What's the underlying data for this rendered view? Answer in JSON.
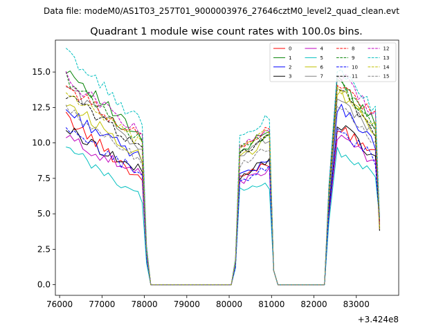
{
  "suptitle": "Data file: modeM0/AS1T03_257T01_9000003976_27646cztM0_level2_quad_clean.evt",
  "chart_data": {
    "type": "line",
    "title": "Quadrant 1 module wise count rates with 100.0s bins.",
    "xlabel": "",
    "ylabel": "",
    "x_offset_label": "+3.424e8",
    "xlim": [
      75900,
      84000
    ],
    "ylim": [
      -0.75,
      17.25
    ],
    "grid": false,
    "legend_position": "top-right",
    "x_ticks": [
      76000,
      77000,
      78000,
      79000,
      80000,
      81000,
      82000,
      83000
    ],
    "x_tick_labels": [
      "76000",
      "77000",
      "78000",
      "79000",
      "80000",
      "81000",
      "82000",
      "83000"
    ],
    "y_ticks": [
      0,
      2.5,
      5,
      7.5,
      10,
      12.5,
      15
    ],
    "y_tick_labels": [
      "0.0",
      "2.5",
      "5.0",
      "7.5",
      "10.0",
      "12.5",
      "15.0"
    ],
    "series": [
      {
        "name": "0",
        "color": "#ff0000",
        "dashed": false,
        "seg1_start": 11.8,
        "seg1_end": 7.4,
        "seg2_start": 7.5,
        "seg2_end": 8.5,
        "seg3_start": 11.2,
        "seg3_end": 9.2
      },
      {
        "name": "1",
        "color": "#008000",
        "dashed": false,
        "seg1_start": 15.3,
        "seg1_end": 10.2,
        "seg2_start": 9.5,
        "seg2_end": 10.8,
        "seg3_start": 14.4,
        "seg3_end": 11.4
      },
      {
        "name": "2",
        "color": "#0000ff",
        "dashed": false,
        "seg1_start": 12.3,
        "seg1_end": 8.8,
        "seg2_start": 7.9,
        "seg2_end": 8.8,
        "seg3_start": 12.6,
        "seg3_end": 10.0
      },
      {
        "name": "3",
        "color": "#000000",
        "dashed": false,
        "seg1_start": 11.0,
        "seg1_end": 7.9,
        "seg2_start": 7.6,
        "seg2_end": 8.9,
        "seg3_start": 11.5,
        "seg3_end": 9.0
      },
      {
        "name": "4",
        "color": "#bf00bf",
        "dashed": false,
        "seg1_start": 10.4,
        "seg1_end": 7.6,
        "seg2_start": 7.3,
        "seg2_end": 8.1,
        "seg3_start": 10.6,
        "seg3_end": 8.5
      },
      {
        "name": "5",
        "color": "#00bfbf",
        "dashed": false,
        "seg1_start": 9.6,
        "seg1_end": 6.1,
        "seg2_start": 6.5,
        "seg2_end": 6.9,
        "seg3_start": 9.6,
        "seg3_end": 7.5
      },
      {
        "name": "6",
        "color": "#bfbf00",
        "dashed": false,
        "seg1_start": 12.9,
        "seg1_end": 9.0,
        "seg2_start": 8.8,
        "seg2_end": 10.3,
        "seg3_start": 13.6,
        "seg3_end": 10.9
      },
      {
        "name": "7",
        "color": "#808080",
        "dashed": false,
        "seg1_start": 14.1,
        "seg1_end": 9.6,
        "seg2_start": 9.1,
        "seg2_end": 10.4,
        "seg3_start": 13.2,
        "seg3_end": 10.6
      },
      {
        "name": "8",
        "color": "#ff0000",
        "dashed": true,
        "seg1_start": 14.0,
        "seg1_end": 10.3,
        "seg2_start": 9.7,
        "seg2_end": 11.0,
        "seg3_start": 14.2,
        "seg3_end": 11.8
      },
      {
        "name": "9",
        "color": "#008000",
        "dashed": true,
        "seg1_start": 14.6,
        "seg1_end": 10.0,
        "seg2_start": 9.6,
        "seg2_end": 10.7,
        "seg3_start": 14.6,
        "seg3_end": 11.2
      },
      {
        "name": "10",
        "color": "#0000ff",
        "dashed": true,
        "seg1_start": 10.8,
        "seg1_end": 7.8,
        "seg2_start": 7.0,
        "seg2_end": 8.4,
        "seg3_start": 11.0,
        "seg3_end": 8.9
      },
      {
        "name": "11",
        "color": "#000000",
        "dashed": true,
        "seg1_start": 13.4,
        "seg1_end": 9.7,
        "seg2_start": 9.3,
        "seg2_end": 10.5,
        "seg3_start": 14.1,
        "seg3_end": 10.8
      },
      {
        "name": "12",
        "color": "#bf00bf",
        "dashed": true,
        "seg1_start": 14.6,
        "seg1_end": 10.6,
        "seg2_start": 9.9,
        "seg2_end": 11.2,
        "seg3_start": 15.2,
        "seg3_end": 11.9
      },
      {
        "name": "13",
        "color": "#00bfbf",
        "dashed": true,
        "seg1_start": 16.4,
        "seg1_end": 11.3,
        "seg2_start": 10.4,
        "seg2_end": 11.8,
        "seg3_start": 15.3,
        "seg3_end": 12.3
      },
      {
        "name": "14",
        "color": "#bfbf00",
        "dashed": true,
        "seg1_start": 13.6,
        "seg1_end": 9.8,
        "seg2_start": 9.4,
        "seg2_end": 10.9,
        "seg3_start": 13.9,
        "seg3_end": 11.2
      },
      {
        "name": "15",
        "color": "#808080",
        "dashed": true,
        "seg1_start": 12.3,
        "seg1_end": 8.8,
        "seg2_start": 8.4,
        "seg2_end": 9.8,
        "seg3_start": 12.9,
        "seg3_end": 10.1
      }
    ],
    "segments": {
      "seg1": {
        "t_start": 76150,
        "t_end": 77950,
        "step": 100
      },
      "seg2": {
        "t_start": 80250,
        "t_end": 80950,
        "step": 100
      },
      "seg3": {
        "t_start": 82550,
        "t_end": 83450,
        "step": 100
      },
      "zero_start": 78150,
      "zero_end": 80050,
      "gap_zero_start": 81150,
      "gap_zero_end": 82250
    }
  }
}
